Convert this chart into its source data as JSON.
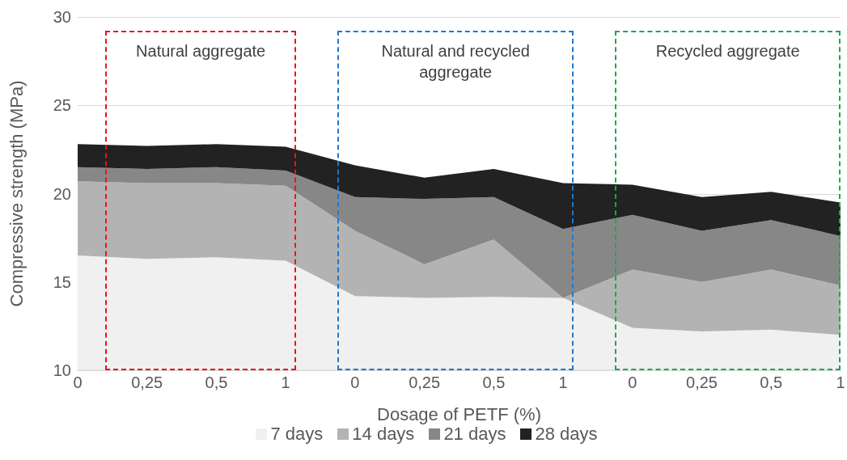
{
  "chart_data": {
    "type": "area",
    "xlabel": "Dosage of PETF (%)",
    "ylabel": "Compressive strength (MPa)",
    "categories": [
      "0",
      "0,25",
      "0,5",
      "1",
      "0",
      "0,25",
      "0,5",
      "1",
      "0",
      "0,25",
      "0,5",
      "1"
    ],
    "series": [
      {
        "name": "7 days",
        "color": "#f0f0f0",
        "values": [
          16.5,
          16.3,
          16.4,
          16.2,
          14.2,
          14.1,
          14.15,
          14.1,
          12.4,
          12.2,
          12.3,
          12.0
        ]
      },
      {
        "name": "14 days",
        "color": "#b3b3b3",
        "values": [
          20.7,
          20.6,
          20.6,
          20.45,
          17.9,
          16.0,
          17.4,
          14.1,
          15.7,
          15.0,
          15.7,
          14.8
        ]
      },
      {
        "name": "21 days",
        "color": "#878787",
        "values": [
          21.5,
          21.4,
          21.5,
          21.3,
          19.8,
          19.7,
          19.8,
          18.0,
          18.8,
          17.9,
          18.5,
          17.6
        ]
      },
      {
        "name": "28 days",
        "color": "#222222",
        "values": [
          22.8,
          22.7,
          22.8,
          22.65,
          21.6,
          20.9,
          21.4,
          20.6,
          20.5,
          19.8,
          20.1,
          19.5
        ]
      }
    ],
    "ylim": [
      10,
      30
    ],
    "yticks": [
      10,
      15,
      20,
      25,
      30
    ],
    "grid": "y",
    "legend": "bottom",
    "annotations": [
      "Natural aggregate",
      "Natural and recycled aggregate",
      "Recycled aggregate"
    ]
  }
}
